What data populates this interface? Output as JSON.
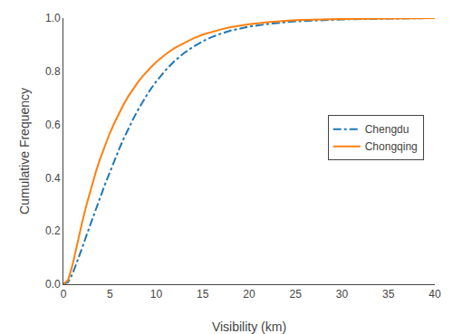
{
  "chart_data": {
    "type": "line",
    "xlabel": "Visibility (km)",
    "ylabel": "Cumulative Frequency",
    "x": [
      0.0,
      0.5,
      1.0,
      1.5,
      2.0,
      2.5,
      3.0,
      3.5,
      4.0,
      4.5,
      5.0,
      5.5,
      6.0,
      6.5,
      7.0,
      7.5,
      8.0,
      8.5,
      9.0,
      9.5,
      10.0,
      11.0,
      12.0,
      13.0,
      14.0,
      15.0,
      16.0,
      17.0,
      18.0,
      20.0,
      22.0,
      25.0,
      30.0,
      35.0,
      40.0
    ],
    "series": [
      {
        "name": "Chengdu",
        "line_style": "dashdot",
        "values": [
          0.0,
          0.008,
          0.04,
          0.085,
          0.135,
          0.185,
          0.235,
          0.283,
          0.33,
          0.377,
          0.422,
          0.466,
          0.508,
          0.548,
          0.585,
          0.62,
          0.653,
          0.684,
          0.712,
          0.738,
          0.762,
          0.804,
          0.84,
          0.869,
          0.893,
          0.913,
          0.929,
          0.942,
          0.953,
          0.968,
          0.978,
          0.988,
          0.995,
          0.998,
          1.0
        ]
      },
      {
        "name": "Chongqing",
        "line_style": "solid",
        "values": [
          0.0,
          0.015,
          0.075,
          0.155,
          0.23,
          0.3,
          0.365,
          0.423,
          0.476,
          0.524,
          0.568,
          0.607,
          0.644,
          0.677,
          0.707,
          0.734,
          0.758,
          0.78,
          0.8,
          0.818,
          0.835,
          0.864,
          0.888,
          0.907,
          0.924,
          0.938,
          0.949,
          0.958,
          0.966,
          0.977,
          0.985,
          0.992,
          0.997,
          0.999,
          1.0
        ]
      }
    ],
    "xlim": [
      0,
      40
    ],
    "ylim": [
      0.0,
      1.0
    ],
    "xticks": [
      0,
      5,
      10,
      15,
      20,
      25,
      30,
      35,
      40
    ],
    "yticks": [
      {
        "value": 0,
        "label": "0.0"
      },
      0.2,
      0.4,
      0.6,
      0.8,
      {
        "value": 1,
        "label": "1.0"
      }
    ],
    "grid": false,
    "legend": "right"
  }
}
